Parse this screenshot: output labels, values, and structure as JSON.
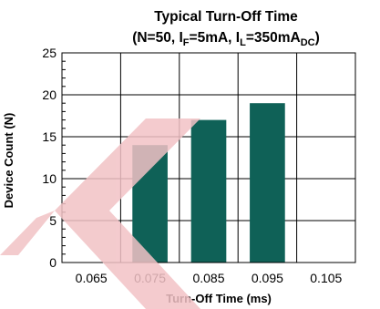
{
  "chart_data": {
    "type": "bar",
    "title_line1": "Typical Turn-Off Time",
    "title_line2": {
      "open": "(N=50, I",
      "sub1": "F",
      "mid1": "=5mA, I",
      "sub2": "L",
      "mid2": "=350mA",
      "sub3": "DC",
      "close": ")"
    },
    "xlabel": "Turn-Off Time (ms)",
    "ylabel": "Device Count (N)",
    "categories": [
      "0.065",
      "0.075",
      "0.085",
      "0.095",
      "0.105"
    ],
    "values": [
      0,
      14,
      17,
      19,
      0
    ],
    "yticks": [
      "0",
      "5",
      "10",
      "15",
      "20",
      "25"
    ],
    "ylim": [
      0,
      25
    ],
    "grid": true,
    "bar_color": "#0f6157",
    "grid_color": "#000000"
  },
  "watermark_color": "#f2c2c5"
}
